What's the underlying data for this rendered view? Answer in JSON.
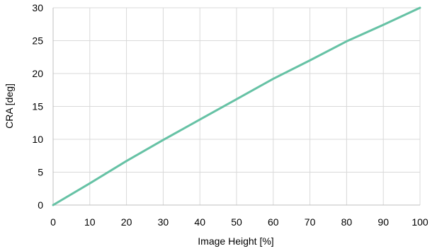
{
  "chart_data": {
    "type": "line",
    "title": "",
    "xlabel": "Image Height [%]",
    "ylabel": "CRA [deg]",
    "xlim": [
      0,
      100
    ],
    "ylim": [
      0,
      30
    ],
    "x_ticks": [
      0,
      10,
      20,
      30,
      40,
      50,
      60,
      70,
      80,
      90,
      100
    ],
    "y_ticks": [
      0,
      5,
      10,
      15,
      20,
      25,
      30
    ],
    "grid": true,
    "legend": "none",
    "series": [
      {
        "color": "#66c2a5",
        "x": [
          0,
          10,
          20,
          30,
          40,
          50,
          60,
          70,
          80,
          90,
          100
        ],
        "y": [
          0,
          3.3,
          6.7,
          9.9,
          13.0,
          16.1,
          19.2,
          22.0,
          24.9,
          27.4,
          30.0
        ]
      }
    ]
  }
}
